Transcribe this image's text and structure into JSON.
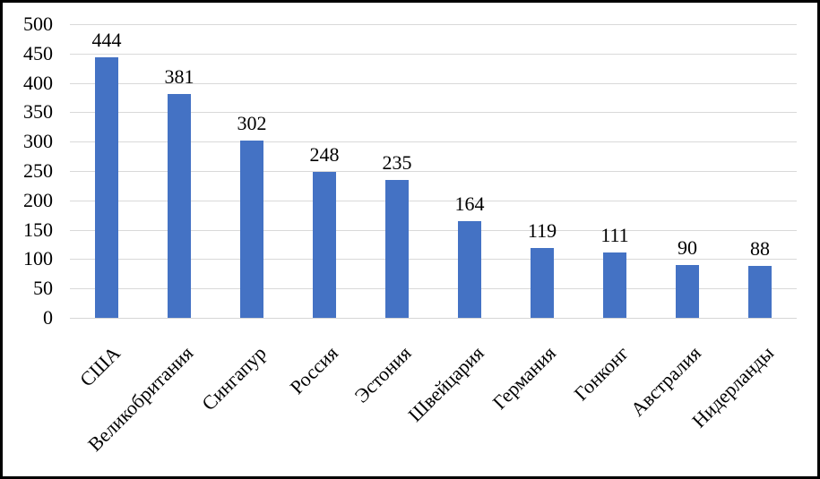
{
  "chart_data": {
    "type": "bar",
    "title": "",
    "xlabel": "",
    "ylabel": "",
    "categories": [
      "США",
      "Великобритания",
      "Сингапур",
      "Россия",
      "Эстония",
      "Швейцария",
      "Германия",
      "Гонконг",
      "Австралия",
      "Нидерланды"
    ],
    "values": [
      444,
      381,
      302,
      248,
      235,
      164,
      119,
      111,
      90,
      88
    ],
    "data_labels": [
      "444",
      "381",
      "302",
      "248",
      "235",
      "164",
      "119",
      "111",
      "90",
      "88"
    ],
    "ylim": [
      0,
      500
    ],
    "ytick_step": 50,
    "yticks": [
      0,
      50,
      100,
      150,
      200,
      250,
      300,
      350,
      400,
      450,
      500
    ],
    "grid": true,
    "legend": false,
    "category_rotation_deg": 45,
    "colors": {
      "bar": "#4472C4",
      "gridline": "#D9D9D9",
      "axis_line": "#D6D6D6",
      "text": "#000000",
      "frame_border": "#000000",
      "background": "#FFFFFF"
    }
  }
}
